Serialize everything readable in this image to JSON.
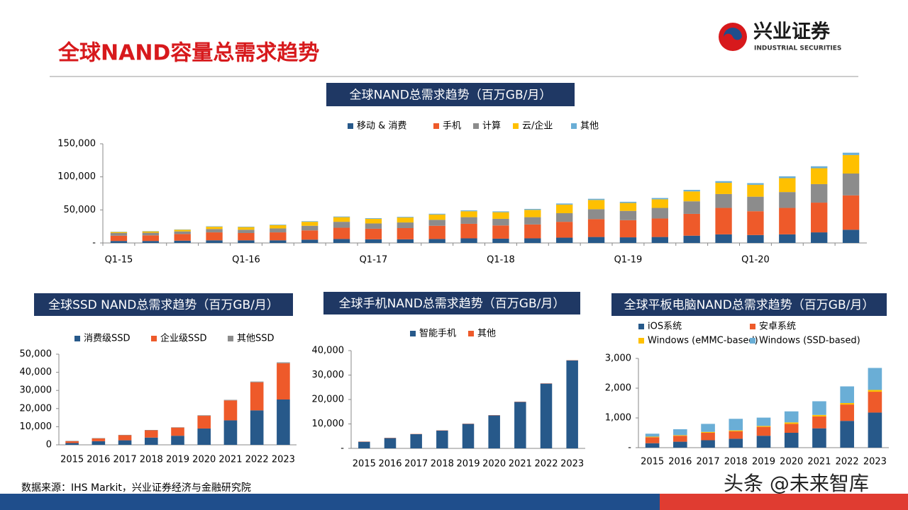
{
  "header": {
    "title": "全球NAND容量总需求趋势",
    "logo_name": "兴业证券",
    "logo_sub": "INDUSTRIAL SECURITIES"
  },
  "source": "数据来源：IHS Markit，兴业证券经济与金融研究院",
  "watermark": "头条 @未来智库",
  "chart_data": [
    {
      "type": "bar",
      "stacked": true,
      "title": "全球NAND总需求趋势（百万GB/月）",
      "categories": [
        "Q1-15",
        null,
        null,
        null,
        "Q1-16",
        null,
        null,
        null,
        "Q1-17",
        null,
        null,
        null,
        "Q1-18",
        null,
        null,
        null,
        "Q1-19",
        null,
        null,
        null,
        "Q1-20",
        null,
        null,
        null
      ],
      "series": [
        {
          "name": "移动 & 消费",
          "color": "#27598a",
          "values": [
            3000,
            3000,
            3500,
            4000,
            4000,
            4000,
            5000,
            6000,
            5500,
            5500,
            6000,
            7000,
            6500,
            7000,
            8000,
            9000,
            8500,
            9000,
            11000,
            13000,
            12000,
            13000,
            16000,
            20000
          ]
        },
        {
          "name": "手机",
          "color": "#ee5a2a",
          "values": [
            8000,
            8500,
            10000,
            12000,
            11000,
            12000,
            14000,
            17000,
            16000,
            17000,
            20000,
            22000,
            20000,
            21000,
            24000,
            27000,
            26000,
            28000,
            33000,
            40000,
            36000,
            40000,
            45000,
            52000
          ]
        },
        {
          "name": "计算",
          "color": "#8c8c8c",
          "values": [
            4000,
            4000,
            4000,
            5000,
            5000,
            6000,
            7000,
            9000,
            8000,
            8500,
            9000,
            10000,
            10000,
            11000,
            13000,
            15000,
            14000,
            16000,
            19000,
            21000,
            22000,
            24000,
            28000,
            33000
          ]
        },
        {
          "name": "云/企业",
          "color": "#ffc000",
          "values": [
            1500,
            2000,
            2500,
            3500,
            4000,
            5000,
            6000,
            7000,
            7000,
            7500,
            8000,
            9000,
            10000,
            11000,
            13000,
            14000,
            12000,
            13000,
            15000,
            17000,
            18000,
            21000,
            24000,
            28000
          ]
        },
        {
          "name": "其他",
          "color": "#6aaed6",
          "values": [
            500,
            500,
            500,
            700,
            700,
            800,
            900,
            1000,
            1000,
            1000,
            1200,
            1300,
            1300,
            1500,
            1700,
            1800,
            1800,
            2000,
            2300,
            2500,
            2500,
            2800,
            3000,
            3500
          ]
        }
      ],
      "ylim": [
        0,
        150000
      ],
      "yticks": [
        {
          "value": 0,
          "label": "-"
        },
        {
          "value": 50000,
          "label": "50,000"
        },
        {
          "value": 100000,
          "label": "100,000"
        },
        {
          "value": 150000,
          "label": "150,000"
        }
      ]
    },
    {
      "type": "bar",
      "stacked": true,
      "title": "全球SSD NAND总需求趋势（百万GB/月）",
      "categories": [
        "2015",
        "2016",
        "2017",
        "2018",
        "2019",
        "2020",
        "2021",
        "2022",
        "2023"
      ],
      "series": [
        {
          "name": "消费级SSD",
          "color": "#27598a",
          "values": [
            1000,
            2000,
            2500,
            4000,
            5000,
            9000,
            13500,
            19000,
            25000
          ]
        },
        {
          "name": "企业级SSD",
          "color": "#ee5a2a",
          "values": [
            1000,
            1500,
            2800,
            4000,
            4500,
            7000,
            11000,
            15500,
            20000
          ]
        },
        {
          "name": "其他SSD",
          "color": "#8c8c8c",
          "values": [
            200,
            200,
            200,
            200,
            200,
            300,
            300,
            400,
            500
          ]
        }
      ],
      "ylim": [
        0,
        50000
      ],
      "yticks": [
        0,
        {
          "value": 10000,
          "label": "10,000"
        },
        {
          "value": 20000,
          "label": "20,000"
        },
        {
          "value": 30000,
          "label": "30,000"
        },
        {
          "value": 40000,
          "label": "40,000"
        },
        {
          "value": 50000,
          "label": "50,000"
        }
      ]
    },
    {
      "type": "bar",
      "stacked": true,
      "title": "全球手机NAND总需求趋势（百万GB/月）",
      "categories": [
        "2015",
        "2016",
        "2017",
        "2018",
        "2019",
        "2020",
        "2021",
        "2022",
        "2023"
      ],
      "series": [
        {
          "name": "智能手机",
          "color": "#27598a",
          "values": [
            2700,
            4200,
            5800,
            7300,
            10000,
            13500,
            19000,
            26500,
            36000
          ]
        },
        {
          "name": "其他",
          "color": "#ee5a2a",
          "values": [
            100,
            100,
            100,
            100,
            100,
            100,
            100,
            100,
            100
          ]
        }
      ],
      "ylim": [
        0,
        40000
      ],
      "yticks": [
        {
          "value": 0,
          "label": "-"
        },
        {
          "value": 10000,
          "label": "10,000"
        },
        {
          "value": 20000,
          "label": "20,000"
        },
        {
          "value": 30000,
          "label": "30,000"
        },
        {
          "value": 40000,
          "label": "40,000"
        }
      ]
    },
    {
      "type": "bar",
      "stacked": true,
      "title": "全球平板电脑NAND总需求趋势（百万GB/月）",
      "categories": [
        "2015",
        "2016",
        "2017",
        "2018",
        "2019",
        "2020",
        "2021",
        "2022",
        "2023"
      ],
      "series": [
        {
          "name": "iOS系统",
          "color": "#27598a",
          "values": [
            150,
            200,
            250,
            300,
            400,
            500,
            650,
            900,
            1180
          ]
        },
        {
          "name": "安卓系统",
          "color": "#ee5a2a",
          "values": [
            200,
            200,
            250,
            250,
            300,
            300,
            400,
            550,
            700
          ]
        },
        {
          "name": "Windows (eMMC-based)",
          "color": "#ffc000",
          "values": [
            20,
            20,
            30,
            30,
            30,
            50,
            50,
            50,
            60
          ]
        },
        {
          "name": "Windows (SSD-based)",
          "color": "#6aaed6",
          "values": [
            100,
            200,
            270,
            390,
            280,
            370,
            460,
            560,
            740
          ]
        }
      ],
      "ylim": [
        0,
        3000
      ],
      "yticks": [
        {
          "value": 0,
          "label": "-"
        },
        {
          "value": 1000,
          "label": "1,000"
        },
        {
          "value": 2000,
          "label": "2,000"
        },
        {
          "value": 3000,
          "label": "3,000"
        }
      ]
    }
  ]
}
